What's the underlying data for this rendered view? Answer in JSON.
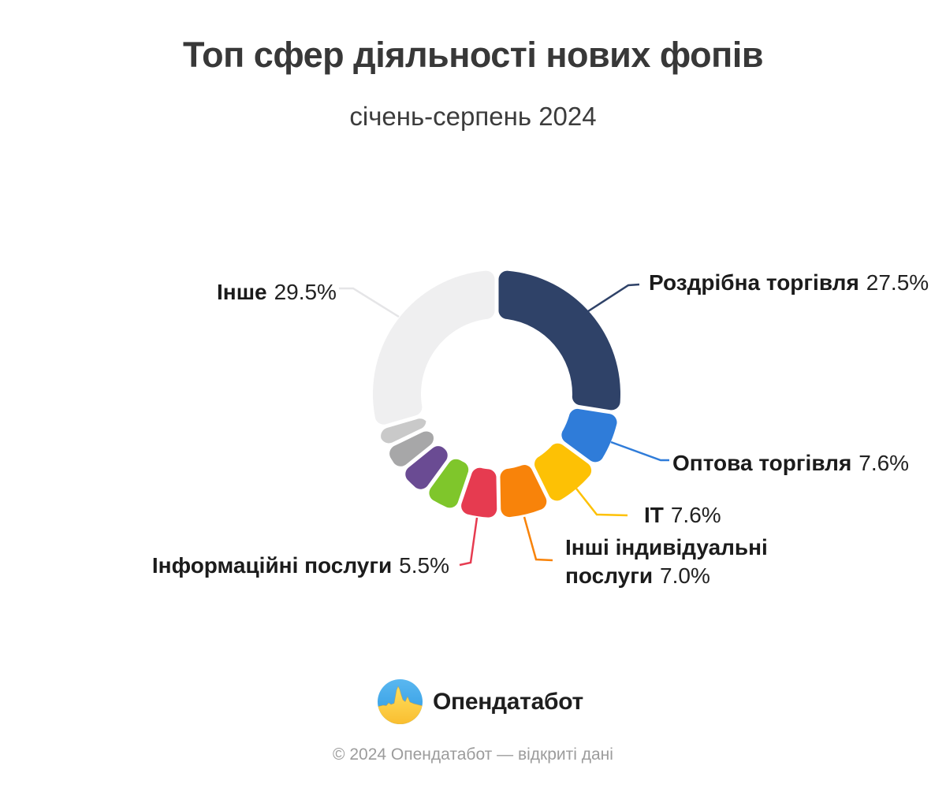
{
  "page": {
    "title": "Топ сфер діяльності нових фопів",
    "subtitle": "січень-серпень 2024",
    "footer": "© 2024 Опендатабот — відкриті дані",
    "background": "#ffffff"
  },
  "brand": {
    "name": "Опендатабот",
    "logo_icon": "opendatabot-ukraine-flag-pulse",
    "flag_blue": "#41a9ec",
    "flag_yellow": "#fcc33d"
  },
  "chart_data": {
    "type": "pie",
    "variant": "donut",
    "title": "Топ сфер діяльності нових фопів",
    "period": "січень-серпень 2024",
    "unit": "%",
    "start_angle_deg": 0,
    "direction": "clockwise",
    "legend_position": "callout-labels",
    "segments": [
      {
        "label": "Роздрібна торгівля",
        "value": 27.5,
        "color": "#2f4268"
      },
      {
        "label": "Оптова торгівля",
        "value": 7.6,
        "color": "#2f7cd9"
      },
      {
        "label": "IT",
        "value": 7.6,
        "color": "#fdc105"
      },
      {
        "label": "Інші індивідуальні послуги",
        "value": 7.0,
        "color": "#f8830a"
      },
      {
        "label": "Інформаційні послуги",
        "value": 5.5,
        "color": "#e63b50"
      },
      {
        "label": "",
        "value": 4.8,
        "color": "#7fc62b",
        "estimated": true
      },
      {
        "label": "",
        "value": 4.2,
        "color": "#6a4b93",
        "estimated": true
      },
      {
        "label": "",
        "value": 3.6,
        "color": "#a7a7a8",
        "estimated": true
      },
      {
        "label": "",
        "value": 2.7,
        "color": "#c9c9c9",
        "estimated": true
      },
      {
        "label": "Інше",
        "value": 29.5,
        "color": "#efeff0"
      }
    ]
  },
  "callout_labels": [
    {
      "name": "Роздрібна торгівля",
      "pct": "27.5%"
    },
    {
      "name": "Оптова торгівля",
      "pct": "7.6%"
    },
    {
      "name": "IT",
      "pct": "7.6%"
    },
    {
      "name": "Інші індивідуальні",
      "name2": "послуги",
      "pct": "7.0%"
    },
    {
      "name": "Інформаційні послуги",
      "pct": "5.5%"
    },
    {
      "name": "Інше",
      "pct": "29.5%"
    }
  ]
}
